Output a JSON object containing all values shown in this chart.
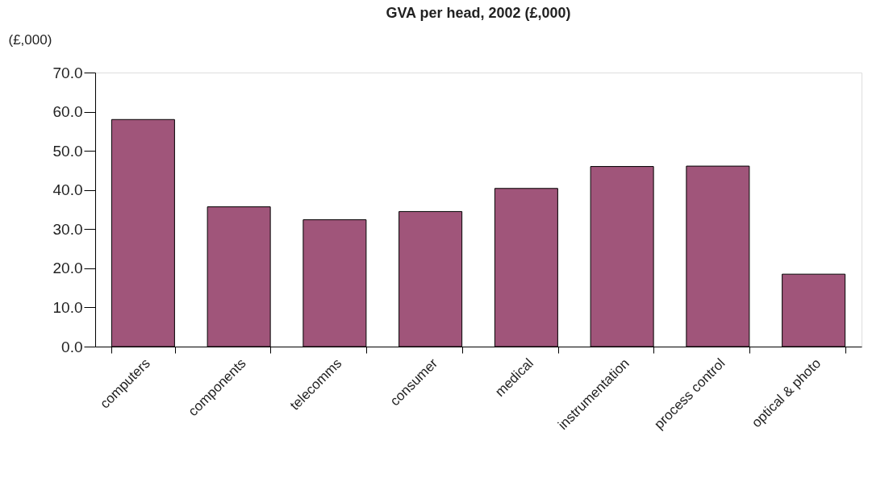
{
  "chart_data": {
    "type": "bar",
    "title": "GVA per head, 2002 (£,000)",
    "ylabel": "(£,000)",
    "categories": [
      "computers",
      "components",
      "telecomms",
      "consumer",
      "medical",
      "instrumentation",
      "process control",
      "optical & photo"
    ],
    "values": [
      58.0,
      35.7,
      32.4,
      34.5,
      40.4,
      46.0,
      46.1,
      18.5
    ],
    "color": "#a0557a",
    "ylim": [
      0,
      70
    ],
    "yticks": [
      {
        "value": 0,
        "label": "0.0"
      },
      {
        "value": 10,
        "label": "10.0"
      },
      {
        "value": 20,
        "label": "20.0"
      },
      {
        "value": 30,
        "label": "30.0"
      },
      {
        "value": 40,
        "label": "40.0"
      },
      {
        "value": 50,
        "label": "50.0"
      },
      {
        "value": 60,
        "label": "60.0"
      },
      {
        "value": 70,
        "label": "70.0"
      }
    ],
    "grid": false
  }
}
